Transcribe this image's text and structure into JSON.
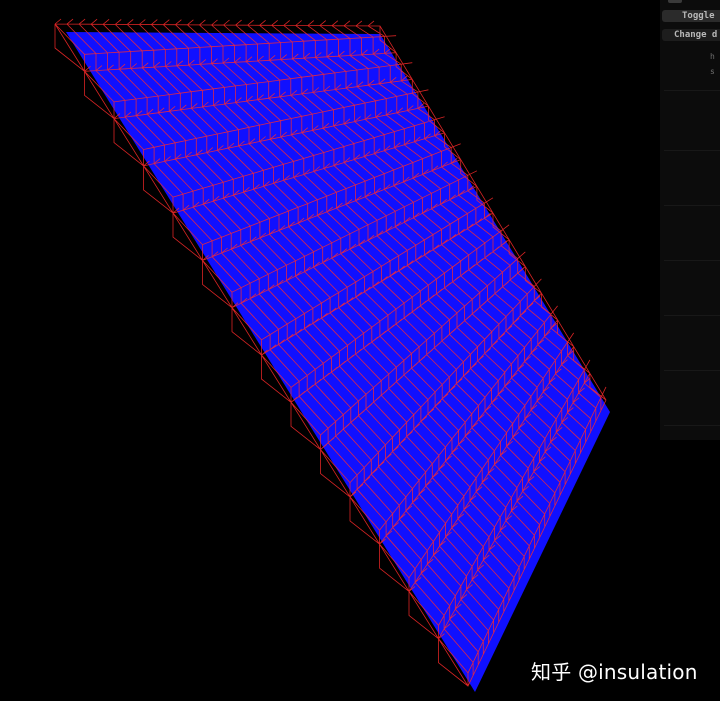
{
  "scene": {
    "background_color": "#000000",
    "plane_color": "#1010ff",
    "wireframe_color": "#ff2a2a",
    "wireframe_rows": 14,
    "wireframe_cols": 27
  },
  "debug_panel": {
    "toggle_label": "Toggle",
    "change_label": "Change d",
    "mini_1": "h",
    "mini_2": "s"
  },
  "watermark": {
    "text": "知乎 @insulation"
  }
}
